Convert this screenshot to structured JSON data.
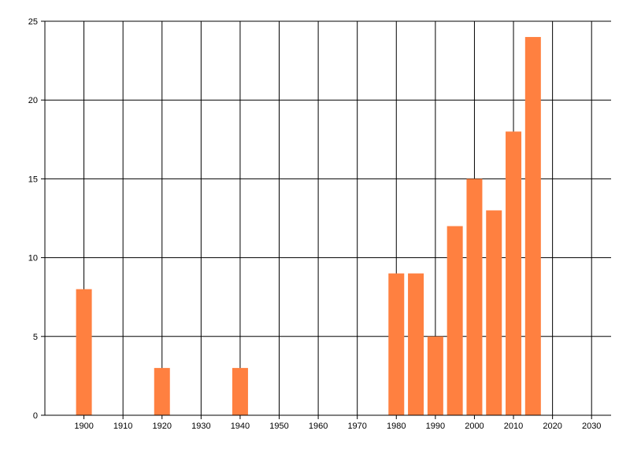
{
  "chart_data": {
    "type": "bar",
    "x": [
      1900,
      1920,
      1940,
      1980,
      1985,
      1990,
      1995,
      2000,
      2005,
      2010,
      2015
    ],
    "values": [
      8,
      3,
      3,
      9,
      9,
      5,
      12,
      15,
      13,
      18,
      24
    ],
    "xlim": [
      1890,
      2035
    ],
    "ylim": [
      0,
      25
    ],
    "x_ticks": [
      1900,
      1910,
      1920,
      1930,
      1940,
      1950,
      1960,
      1970,
      1980,
      1990,
      2000,
      2010,
      2020,
      2030
    ],
    "y_ticks": [
      0,
      5,
      10,
      15,
      20,
      25
    ],
    "title": "",
    "xlabel": "",
    "ylabel": "",
    "grid": true,
    "legend": "none",
    "colors": {
      "bar": "#ff8040",
      "grid": "#000000",
      "axis": "#000000"
    }
  }
}
